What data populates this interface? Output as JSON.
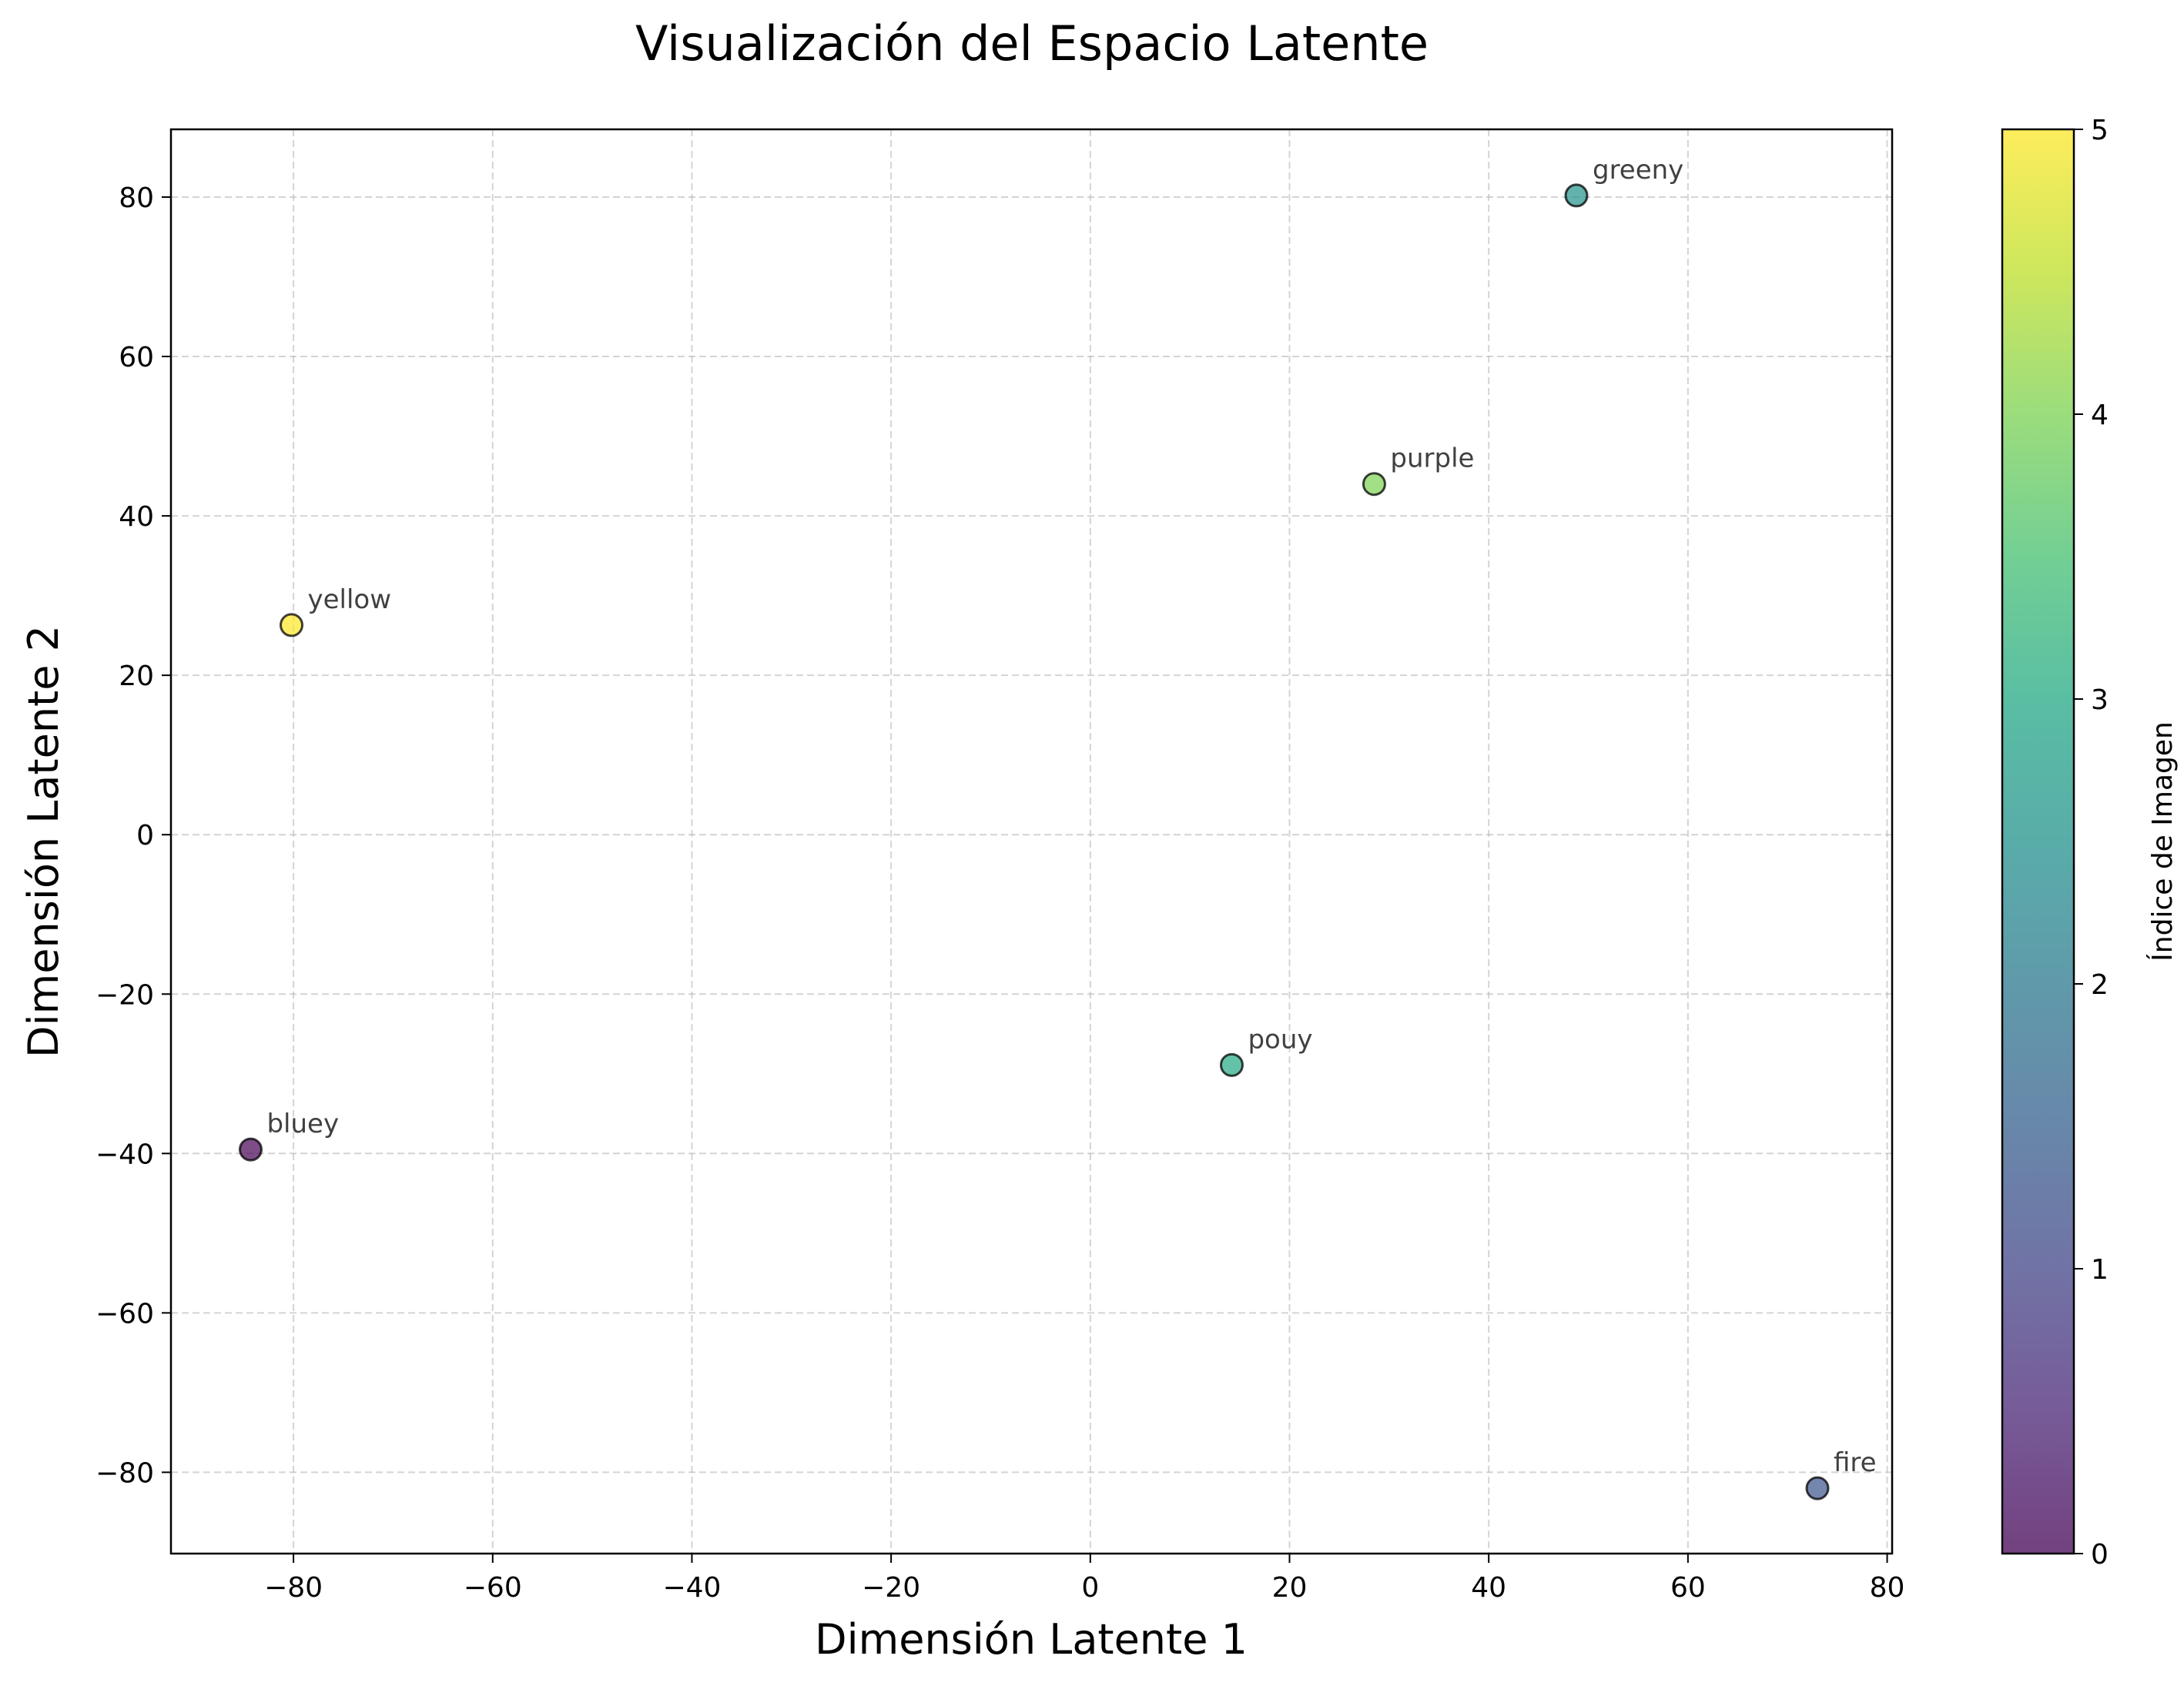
{
  "chart_data": {
    "type": "scatter",
    "title": "Visualización del Espacio Latente",
    "xlabel": "Dimensión Latente 1",
    "ylabel": "Dimensión Latente 2",
    "xlim": [
      -92.3,
      80.5
    ],
    "ylim": [
      -90.2,
      88.5
    ],
    "xticks": [
      -80,
      -60,
      -40,
      -20,
      0,
      20,
      40,
      60,
      80
    ],
    "yticks": [
      -80,
      -60,
      -40,
      -20,
      0,
      20,
      40,
      60,
      80
    ],
    "grid": true,
    "colormap": "viridis",
    "colorbar": {
      "label": "Índice de Imagen",
      "range": [
        0,
        5
      ],
      "ticks": [
        0,
        1,
        2,
        3,
        4,
        5
      ]
    },
    "points": [
      {
        "label": "bluey",
        "x": -84.3,
        "y": -39.5,
        "index": 0,
        "color": "#440154"
      },
      {
        "label": "fire",
        "x": 73.0,
        "y": -82.0,
        "index": 1,
        "color": "#3b528b"
      },
      {
        "label": "greeny",
        "x": 48.8,
        "y": 80.2,
        "index": 2,
        "color": "#21918c"
      },
      {
        "label": "pouy",
        "x": 14.2,
        "y": -28.9,
        "index": 3,
        "color": "#22a884"
      },
      {
        "label": "purple",
        "x": 28.5,
        "y": 44.0,
        "index": 4,
        "color": "#7ad151"
      },
      {
        "label": "yellow",
        "x": -80.2,
        "y": 26.3,
        "index": 5,
        "color": "#fde725"
      }
    ]
  }
}
